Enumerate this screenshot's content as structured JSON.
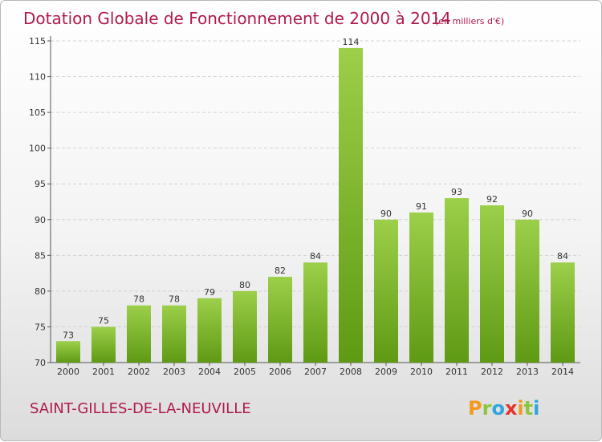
{
  "title": "Dotation Globale de Fonctionnement de 2000 à 2014",
  "unit_note": "(en milliers d'€)",
  "commune": "SAINT-GILLES-DE-LA-NEUVILLE",
  "logo": {
    "text": "Proxiti",
    "letters": [
      {
        "char": "P",
        "color": "#f29a1f"
      },
      {
        "char": "r",
        "color": "#8cc63e"
      },
      {
        "char": "o",
        "color": "#2fa6dd"
      },
      {
        "char": "x",
        "color": "#e2342a"
      },
      {
        "char": "i",
        "color": "#f29a1f"
      },
      {
        "char": "t",
        "color": "#8cc63e"
      },
      {
        "char": "i",
        "color": "#2fa6dd"
      }
    ]
  },
  "colors": {
    "bar_top": "#9ccf4a",
    "bar_bottom": "#5f9a14",
    "accent": "#b01a4a",
    "grid": "#d2d2d2"
  },
  "chart_data": {
    "type": "bar",
    "categories": [
      "2000",
      "2001",
      "2002",
      "2003",
      "2004",
      "2005",
      "2006",
      "2007",
      "2008",
      "2009",
      "2010",
      "2011",
      "2012",
      "2013",
      "2014"
    ],
    "values": [
      73,
      75,
      78,
      78,
      79,
      80,
      82,
      84,
      114,
      90,
      91,
      93,
      92,
      90,
      84
    ],
    "title": "Dotation Globale de Fonctionnement de 2000 à 2014",
    "ylim": [
      70,
      115
    ],
    "yticks": [
      70,
      75,
      80,
      85,
      90,
      95,
      100,
      105,
      110,
      115
    ],
    "grid": "horizontal dashed",
    "legend": "none"
  }
}
